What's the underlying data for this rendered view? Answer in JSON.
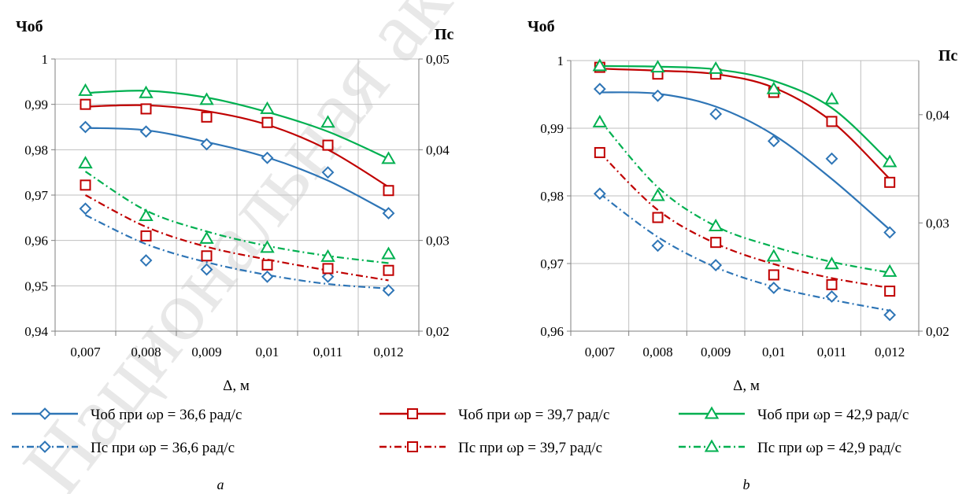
{
  "colors": {
    "blue": "#2E75B6",
    "red": "#C00000",
    "green": "#00B050",
    "grid": "#BFBFBF",
    "axis": "#7F7F7F",
    "watermark": "#E8E8E8"
  },
  "watermark": "Национальная ак",
  "legend": {
    "items": [
      {
        "label": "Чоб при ωр = 36,6 рад/с",
        "color": "blue",
        "marker": "diamond",
        "dashed": false
      },
      {
        "label": "Чоб при ωр = 39,7 рад/с",
        "color": "red",
        "marker": "square",
        "dashed": false
      },
      {
        "label": "Чоб при ωр = 42,9 рад/с",
        "color": "green",
        "marker": "triangle",
        "dashed": false
      },
      {
        "label": "Пс при ωр = 36,6 рад/с",
        "color": "blue",
        "marker": "diamond",
        "dashed": true
      },
      {
        "label": "Пс при ωр = 39,7 рад/с",
        "color": "red",
        "marker": "square",
        "dashed": true
      },
      {
        "label": "Пс при ωр = 42,9 рад/с",
        "color": "green",
        "marker": "triangle",
        "dashed": true
      }
    ]
  },
  "chart_data": [
    {
      "type": "line",
      "caption": "a",
      "xlabel": "Δ, м",
      "ylabel_left": "Чоб",
      "ylabel_right": "Пс",
      "x": [
        0.007,
        0.008,
        0.009,
        0.01,
        0.011,
        0.012
      ],
      "x_tick_labels": [
        "0,007",
        "0,008",
        "0,009",
        "0,01",
        "0,011",
        "0,012"
      ],
      "y_left_range": [
        0.94,
        1.0
      ],
      "y_left_ticks": [
        "0,94",
        "0,95",
        "0,96",
        "0,97",
        "0,98",
        "0,99",
        "1"
      ],
      "y_right_range": [
        0.02,
        0.05
      ],
      "y_right_ticks": [
        "0,02",
        "0,03",
        "0,04",
        "0,05"
      ],
      "grid": true,
      "series": [
        {
          "name": "Чоб при ωр = 36,6 рад/с",
          "axis": "left",
          "color": "blue",
          "marker": "diamond",
          "dashed": false,
          "values": [
            0.985,
            0.984,
            0.9812,
            0.9782,
            0.975,
            0.966
          ],
          "fit": [
            0.9848,
            0.9843,
            0.9817,
            0.9783,
            0.9732,
            0.9662
          ]
        },
        {
          "name": "Чоб при ωр = 39,7 рад/с",
          "axis": "left",
          "color": "red",
          "marker": "square",
          "dashed": false,
          "values": [
            0.99,
            0.989,
            0.9872,
            0.986,
            0.981,
            0.971
          ],
          "fit": [
            0.9895,
            0.9898,
            0.9885,
            0.9855,
            0.98,
            0.9718
          ]
        },
        {
          "name": "Чоб при ωр = 42,9 рад/с",
          "axis": "left",
          "color": "green",
          "marker": "triangle",
          "dashed": false,
          "values": [
            0.993,
            0.9925,
            0.991,
            0.989,
            0.986,
            0.978
          ],
          "fit": [
            0.9925,
            0.993,
            0.9915,
            0.9883,
            0.984,
            0.978
          ]
        },
        {
          "name": "Пс при ωр = 36,6 рад/с",
          "axis": "right",
          "color": "blue",
          "marker": "diamond",
          "dashed": true,
          "values": [
            0.0335,
            0.0278,
            0.0268,
            0.026,
            0.026,
            0.0245
          ],
          "fit": [
            0.0328,
            0.0296,
            0.0276,
            0.0262,
            0.0252,
            0.0247
          ]
        },
        {
          "name": "Пс при ωр = 39,7 рад/с",
          "axis": "right",
          "color": "red",
          "marker": "square",
          "dashed": true,
          "values": [
            0.0361,
            0.0305,
            0.0283,
            0.0273,
            0.0269,
            0.0267
          ],
          "fit": [
            0.035,
            0.0315,
            0.0293,
            0.0279,
            0.0267,
            0.0256
          ]
        },
        {
          "name": "Пс при ωр = 42,9 рад/с",
          "axis": "right",
          "color": "green",
          "marker": "triangle",
          "dashed": true,
          "values": [
            0.0385,
            0.0327,
            0.0302,
            0.0292,
            0.0282,
            0.0285
          ],
          "fit": [
            0.0376,
            0.0333,
            0.031,
            0.0294,
            0.0283,
            0.0275
          ]
        }
      ]
    },
    {
      "type": "line",
      "caption": "b",
      "xlabel": "Δ, м",
      "ylabel_left": "Чоб",
      "ylabel_right": "Пс",
      "x": [
        0.007,
        0.008,
        0.009,
        0.01,
        0.011,
        0.012
      ],
      "x_tick_labels": [
        "0,007",
        "0,008",
        "0,009",
        "0,01",
        "0,011",
        "0,012"
      ],
      "y_left_range": [
        0.96,
        1.0
      ],
      "y_left_ticks": [
        "0,96",
        "0,97",
        "0,98",
        "0,99",
        "1"
      ],
      "y_right_range": [
        0.02,
        0.045
      ],
      "y_right_ticks": [
        "0,02",
        "0,03",
        "0,04"
      ],
      "grid": true,
      "series": [
        {
          "name": "Чоб при ωр = 36,6 рад/с",
          "axis": "left",
          "color": "blue",
          "marker": "diamond",
          "dashed": false,
          "values": [
            0.9958,
            0.9948,
            0.9921,
            0.9881,
            0.9855,
            0.9746
          ],
          "fit": [
            0.9953,
            0.9951,
            0.9932,
            0.989,
            0.9825,
            0.975
          ]
        },
        {
          "name": "Чоб при ωр = 39,7 рад/с",
          "axis": "left",
          "color": "red",
          "marker": "square",
          "dashed": false,
          "values": [
            0.999,
            0.998,
            0.998,
            0.9953,
            0.991,
            0.982
          ],
          "fit": [
            0.9988,
            0.9985,
            0.998,
            0.996,
            0.991,
            0.9825
          ]
        },
        {
          "name": "Чоб при ωр = 42,9 рад/с",
          "axis": "left",
          "color": "green",
          "marker": "triangle",
          "dashed": false,
          "values": [
            0.9992,
            0.999,
            0.9988,
            0.9958,
            0.9943,
            0.985
          ],
          "fit": [
            0.9992,
            0.9991,
            0.9987,
            0.997,
            0.993,
            0.985
          ]
        },
        {
          "name": "Пс при ωр = 36,6 рад/с",
          "axis": "right",
          "color": "blue",
          "marker": "diamond",
          "dashed": true,
          "values": [
            0.0327,
            0.0279,
            0.0261,
            0.024,
            0.0232,
            0.0215
          ],
          "fit": [
            0.0327,
            0.0287,
            0.0259,
            0.0241,
            0.0229,
            0.0219
          ]
        },
        {
          "name": "Пс при ωр = 39,7 рад/с",
          "axis": "right",
          "color": "red",
          "marker": "square",
          "dashed": true,
          "values": [
            0.0365,
            0.0305,
            0.0282,
            0.0252,
            0.0243,
            0.0237
          ],
          "fit": [
            0.0365,
            0.0312,
            0.0281,
            0.0262,
            0.0249,
            0.024
          ]
        },
        {
          "name": "Пс при ωр = 42,9 рад/с",
          "axis": "right",
          "color": "green",
          "marker": "triangle",
          "dashed": true,
          "values": [
            0.0393,
            0.0325,
            0.0297,
            0.0269,
            0.0262,
            0.0255
          ],
          "fit": [
            0.0395,
            0.0333,
            0.0297,
            0.0278,
            0.0264,
            0.0254
          ]
        }
      ]
    }
  ]
}
